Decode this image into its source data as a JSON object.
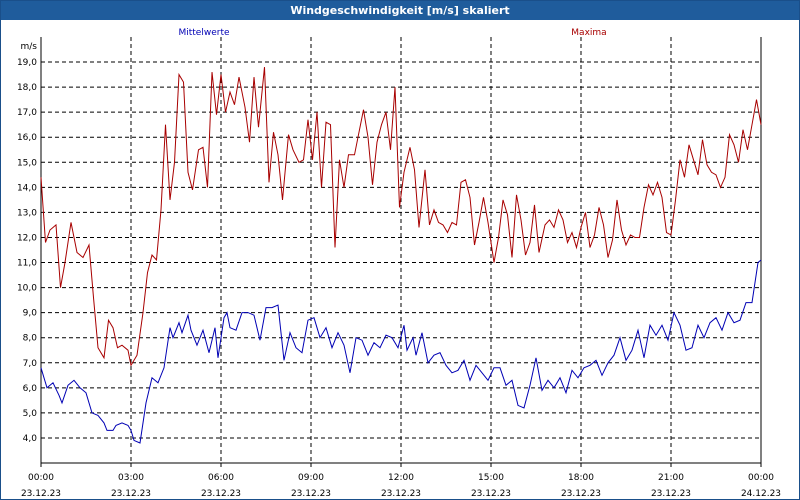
{
  "window": {
    "title": "Windgeschwindigkeit [m/s] skaliert"
  },
  "chart_data": {
    "type": "line",
    "ylabel": "m/s",
    "ylim": [
      3.0,
      20.0
    ],
    "xlim": [
      0,
      24
    ],
    "grid": true,
    "y_ticks": [
      "4,0",
      "5,0",
      "6,0",
      "7,0",
      "8,0",
      "9,0",
      "10,0",
      "11,0",
      "12,0",
      "13,0",
      "14,0",
      "15,0",
      "16,0",
      "17,0",
      "18,0",
      "19,0"
    ],
    "x_ticks": [
      {
        "time": "00:00",
        "date": "23.12.23"
      },
      {
        "time": "03:00",
        "date": "23.12.23"
      },
      {
        "time": "06:00",
        "date": "23.12.23"
      },
      {
        "time": "09:00",
        "date": "23.12.23"
      },
      {
        "time": "12:00",
        "date": "23.12.23"
      },
      {
        "time": "15:00",
        "date": "23.12.23"
      },
      {
        "time": "18:00",
        "date": "23.12.23"
      },
      {
        "time": "21:00",
        "date": "23.12.23"
      },
      {
        "time": "00:00",
        "date": "24.12.23"
      }
    ],
    "series": [
      {
        "name": "Mittelwerte",
        "color": "#0000b4",
        "values": [
          [
            0.0,
            6.8
          ],
          [
            0.2,
            6.0
          ],
          [
            0.4,
            6.2
          ],
          [
            0.6,
            5.7
          ],
          [
            0.7,
            5.4
          ],
          [
            0.9,
            6.1
          ],
          [
            1.1,
            6.3
          ],
          [
            1.3,
            6.0
          ],
          [
            1.5,
            5.8
          ],
          [
            1.7,
            5.0
          ],
          [
            1.9,
            4.9
          ],
          [
            2.1,
            4.6
          ],
          [
            2.2,
            4.3
          ],
          [
            2.4,
            4.3
          ],
          [
            2.5,
            4.5
          ],
          [
            2.7,
            4.6
          ],
          [
            2.9,
            4.5
          ],
          [
            3.0,
            4.3
          ],
          [
            3.1,
            3.9
          ],
          [
            3.3,
            3.8
          ],
          [
            3.5,
            5.4
          ],
          [
            3.7,
            6.4
          ],
          [
            3.9,
            6.2
          ],
          [
            4.1,
            6.8
          ],
          [
            4.3,
            8.4
          ],
          [
            4.4,
            8.0
          ],
          [
            4.6,
            8.6
          ],
          [
            4.7,
            8.2
          ],
          [
            4.9,
            8.9
          ],
          [
            5.0,
            8.3
          ],
          [
            5.2,
            7.7
          ],
          [
            5.4,
            8.3
          ],
          [
            5.6,
            7.4
          ],
          [
            5.8,
            8.4
          ],
          [
            5.9,
            7.2
          ],
          [
            6.1,
            8.8
          ],
          [
            6.2,
            9.0
          ],
          [
            6.3,
            8.4
          ],
          [
            6.5,
            8.3
          ],
          [
            6.7,
            9.0
          ],
          [
            6.9,
            9.0
          ],
          [
            7.1,
            8.9
          ],
          [
            7.3,
            7.9
          ],
          [
            7.5,
            9.2
          ],
          [
            7.7,
            9.2
          ],
          [
            7.9,
            9.3
          ],
          [
            8.1,
            7.1
          ],
          [
            8.3,
            8.2
          ],
          [
            8.5,
            7.6
          ],
          [
            8.7,
            7.4
          ],
          [
            8.9,
            8.7
          ],
          [
            9.1,
            8.8
          ],
          [
            9.3,
            8.0
          ],
          [
            9.5,
            8.4
          ],
          [
            9.7,
            7.6
          ],
          [
            9.9,
            8.2
          ],
          [
            10.1,
            7.7
          ],
          [
            10.3,
            6.6
          ],
          [
            10.5,
            8.0
          ],
          [
            10.7,
            7.9
          ],
          [
            10.9,
            7.3
          ],
          [
            11.1,
            7.8
          ],
          [
            11.3,
            7.6
          ],
          [
            11.5,
            8.1
          ],
          [
            11.7,
            8.0
          ],
          [
            11.9,
            7.6
          ],
          [
            12.1,
            8.5
          ],
          [
            12.2,
            7.5
          ],
          [
            12.4,
            8.0
          ],
          [
            12.5,
            7.3
          ],
          [
            12.7,
            8.2
          ],
          [
            12.9,
            7.0
          ],
          [
            13.1,
            7.3
          ],
          [
            13.3,
            7.4
          ],
          [
            13.5,
            6.9
          ],
          [
            13.7,
            6.6
          ],
          [
            13.9,
            6.7
          ],
          [
            14.1,
            7.1
          ],
          [
            14.3,
            6.3
          ],
          [
            14.5,
            6.9
          ],
          [
            14.7,
            6.6
          ],
          [
            14.9,
            6.3
          ],
          [
            15.1,
            6.8
          ],
          [
            15.3,
            6.8
          ],
          [
            15.5,
            6.1
          ],
          [
            15.7,
            6.3
          ],
          [
            15.9,
            5.3
          ],
          [
            16.1,
            5.2
          ],
          [
            16.3,
            6.1
          ],
          [
            16.5,
            7.2
          ],
          [
            16.7,
            5.9
          ],
          [
            16.9,
            6.3
          ],
          [
            17.1,
            6.0
          ],
          [
            17.3,
            6.4
          ],
          [
            17.5,
            5.8
          ],
          [
            17.7,
            6.7
          ],
          [
            17.9,
            6.4
          ],
          [
            18.1,
            6.8
          ],
          [
            18.3,
            6.9
          ],
          [
            18.5,
            7.1
          ],
          [
            18.7,
            6.5
          ],
          [
            18.9,
            7.0
          ],
          [
            19.1,
            7.3
          ],
          [
            19.3,
            8.0
          ],
          [
            19.5,
            7.1
          ],
          [
            19.7,
            7.5
          ],
          [
            19.9,
            8.3
          ],
          [
            20.1,
            7.2
          ],
          [
            20.3,
            8.5
          ],
          [
            20.5,
            8.1
          ],
          [
            20.7,
            8.5
          ],
          [
            20.9,
            7.9
          ],
          [
            21.1,
            9.0
          ],
          [
            21.3,
            8.5
          ],
          [
            21.5,
            7.5
          ],
          [
            21.7,
            7.6
          ],
          [
            21.9,
            8.5
          ],
          [
            22.1,
            8.0
          ],
          [
            22.3,
            8.6
          ],
          [
            22.5,
            8.8
          ],
          [
            22.7,
            8.3
          ],
          [
            22.9,
            9.0
          ],
          [
            23.1,
            8.6
          ],
          [
            23.3,
            8.7
          ],
          [
            23.5,
            9.4
          ],
          [
            23.7,
            9.4
          ],
          [
            23.9,
            11.0
          ],
          [
            24.0,
            11.1
          ]
        ]
      },
      {
        "name": "Maxima",
        "color": "#a80000",
        "values": [
          [
            0.0,
            14.4
          ],
          [
            0.15,
            11.8
          ],
          [
            0.3,
            12.3
          ],
          [
            0.5,
            12.5
          ],
          [
            0.65,
            10.0
          ],
          [
            0.8,
            11.0
          ],
          [
            1.0,
            12.6
          ],
          [
            1.2,
            11.4
          ],
          [
            1.4,
            11.2
          ],
          [
            1.6,
            11.7
          ],
          [
            1.75,
            9.6
          ],
          [
            1.9,
            7.6
          ],
          [
            2.1,
            7.2
          ],
          [
            2.25,
            8.7
          ],
          [
            2.4,
            8.4
          ],
          [
            2.55,
            7.6
          ],
          [
            2.7,
            7.7
          ],
          [
            2.9,
            7.5
          ],
          [
            3.0,
            6.9
          ],
          [
            3.2,
            7.3
          ],
          [
            3.4,
            9.0
          ],
          [
            3.55,
            10.6
          ],
          [
            3.7,
            11.3
          ],
          [
            3.85,
            11.1
          ],
          [
            4.0,
            13.1
          ],
          [
            4.15,
            16.5
          ],
          [
            4.3,
            13.5
          ],
          [
            4.45,
            15.0
          ],
          [
            4.6,
            18.5
          ],
          [
            4.75,
            18.2
          ],
          [
            4.9,
            14.6
          ],
          [
            5.05,
            13.9
          ],
          [
            5.25,
            15.5
          ],
          [
            5.4,
            15.6
          ],
          [
            5.55,
            14.0
          ],
          [
            5.7,
            18.6
          ],
          [
            5.85,
            16.9
          ],
          [
            6.0,
            18.5
          ],
          [
            6.15,
            17.0
          ],
          [
            6.3,
            17.8
          ],
          [
            6.45,
            17.3
          ],
          [
            6.6,
            18.4
          ],
          [
            6.8,
            17.2
          ],
          [
            6.95,
            15.8
          ],
          [
            7.1,
            18.4
          ],
          [
            7.25,
            16.4
          ],
          [
            7.45,
            18.8
          ],
          [
            7.6,
            14.2
          ],
          [
            7.75,
            16.2
          ],
          [
            7.9,
            15.3
          ],
          [
            8.05,
            13.5
          ],
          [
            8.25,
            16.1
          ],
          [
            8.4,
            15.5
          ],
          [
            8.6,
            15.0
          ],
          [
            8.75,
            15.1
          ],
          [
            8.9,
            16.7
          ],
          [
            9.05,
            15.1
          ],
          [
            9.2,
            17.0
          ],
          [
            9.35,
            14.0
          ],
          [
            9.5,
            16.6
          ],
          [
            9.65,
            16.5
          ],
          [
            9.8,
            11.6
          ],
          [
            9.95,
            15.1
          ],
          [
            10.1,
            14.0
          ],
          [
            10.25,
            15.3
          ],
          [
            10.45,
            15.3
          ],
          [
            10.6,
            16.2
          ],
          [
            10.75,
            17.1
          ],
          [
            10.9,
            16.0
          ],
          [
            11.05,
            14.1
          ],
          [
            11.2,
            15.8
          ],
          [
            11.35,
            16.5
          ],
          [
            11.5,
            17.0
          ],
          [
            11.65,
            15.5
          ],
          [
            11.8,
            18.0
          ],
          [
            11.95,
            13.2
          ],
          [
            12.1,
            14.6
          ],
          [
            12.3,
            15.6
          ],
          [
            12.45,
            14.7
          ],
          [
            12.6,
            12.4
          ],
          [
            12.8,
            14.7
          ],
          [
            12.95,
            12.5
          ],
          [
            13.1,
            13.1
          ],
          [
            13.25,
            12.6
          ],
          [
            13.4,
            12.5
          ],
          [
            13.55,
            12.2
          ],
          [
            13.7,
            12.6
          ],
          [
            13.85,
            12.5
          ],
          [
            14.0,
            14.2
          ],
          [
            14.15,
            14.3
          ],
          [
            14.3,
            13.6
          ],
          [
            14.45,
            11.7
          ],
          [
            14.6,
            12.6
          ],
          [
            14.75,
            13.6
          ],
          [
            14.9,
            12.6
          ],
          [
            15.1,
            11.0
          ],
          [
            15.25,
            12.0
          ],
          [
            15.4,
            13.5
          ],
          [
            15.55,
            12.9
          ],
          [
            15.7,
            11.2
          ],
          [
            15.85,
            13.7
          ],
          [
            16.0,
            12.7
          ],
          [
            16.15,
            11.3
          ],
          [
            16.3,
            11.8
          ],
          [
            16.45,
            13.3
          ],
          [
            16.6,
            11.4
          ],
          [
            16.8,
            12.5
          ],
          [
            16.95,
            12.7
          ],
          [
            17.1,
            12.4
          ],
          [
            17.25,
            13.1
          ],
          [
            17.4,
            12.7
          ],
          [
            17.55,
            11.8
          ],
          [
            17.7,
            12.2
          ],
          [
            17.85,
            11.6
          ],
          [
            18.0,
            12.4
          ],
          [
            18.15,
            13.0
          ],
          [
            18.3,
            11.6
          ],
          [
            18.45,
            12.1
          ],
          [
            18.6,
            13.2
          ],
          [
            18.75,
            12.5
          ],
          [
            18.9,
            11.2
          ],
          [
            19.05,
            11.9
          ],
          [
            19.2,
            13.5
          ],
          [
            19.35,
            12.3
          ],
          [
            19.5,
            11.7
          ],
          [
            19.65,
            12.1
          ],
          [
            19.8,
            12.0
          ],
          [
            19.95,
            12.0
          ],
          [
            20.1,
            13.2
          ],
          [
            20.25,
            14.1
          ],
          [
            20.4,
            13.7
          ],
          [
            20.55,
            14.2
          ],
          [
            20.7,
            13.6
          ],
          [
            20.85,
            12.2
          ],
          [
            21.0,
            12.1
          ],
          [
            21.15,
            13.5
          ],
          [
            21.3,
            15.1
          ],
          [
            21.45,
            14.4
          ],
          [
            21.6,
            15.7
          ],
          [
            21.75,
            15.1
          ],
          [
            21.9,
            14.5
          ],
          [
            22.05,
            15.9
          ],
          [
            22.2,
            14.9
          ],
          [
            22.35,
            14.6
          ],
          [
            22.5,
            14.5
          ],
          [
            22.65,
            14.0
          ],
          [
            22.8,
            14.4
          ],
          [
            22.95,
            16.1
          ],
          [
            23.1,
            15.7
          ],
          [
            23.25,
            15.0
          ],
          [
            23.4,
            16.3
          ],
          [
            23.55,
            15.5
          ],
          [
            23.7,
            16.5
          ],
          [
            23.85,
            17.5
          ],
          [
            24.0,
            16.5
          ]
        ]
      }
    ]
  }
}
